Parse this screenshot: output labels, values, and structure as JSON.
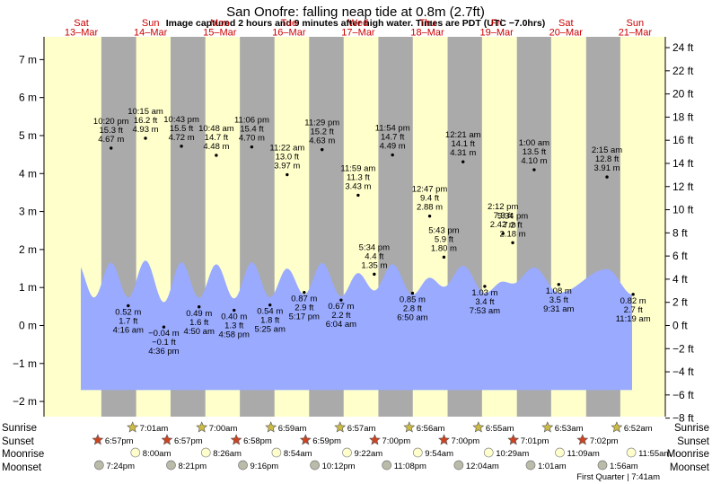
{
  "title": "San Onofre: falling  neap tide at 0.8m (2.7ft)",
  "subtitle": "Image captured 2 hours and 9 minutes after high water. Times are PDT (UTC −7.0hrs)",
  "colors": {
    "day": "#ffffcc",
    "night": "#aaaaaa",
    "water": "#99aaff",
    "sunrise_star": "#ccbb44",
    "sunset_star": "#cc4422",
    "moonrise": "#ffffcc",
    "moonset": "#bbbbaa",
    "day_label": "#cc0000"
  },
  "chart_data": {
    "type": "area",
    "title": "San Onofre: falling  neap tide at 0.8m (2.7ft)",
    "xlabel": "",
    "ylabel_left": "m",
    "ylabel_right": "ft",
    "ylim_m": [
      -2.4,
      7.6
    ],
    "left_ticks": [
      "−2 m",
      "−1 m",
      "0 m",
      "1 m",
      "2 m",
      "3 m",
      "4 m",
      "5 m",
      "6 m",
      "7 m"
    ],
    "right_ticks": [
      "−8 ft",
      "−6 ft",
      "−4 ft",
      "−2 ft",
      "0 ft",
      "2 ft",
      "4 ft",
      "6 ft",
      "8 ft",
      "10 ft",
      "12 ft",
      "14 ft",
      "16 ft",
      "18 ft",
      "20 ft",
      "22 ft",
      "24 ft"
    ],
    "days": [
      {
        "dow": "Sat",
        "date": "13–Mar"
      },
      {
        "dow": "Sun",
        "date": "14–Mar"
      },
      {
        "dow": "Mon",
        "date": "15–Mar"
      },
      {
        "dow": "Tue",
        "date": "16–Mar"
      },
      {
        "dow": "Wed",
        "date": "17–Mar"
      },
      {
        "dow": "Thu",
        "date": "18–Mar"
      },
      {
        "dow": "Fri",
        "date": "19–Mar"
      },
      {
        "dow": "Sat",
        "date": "20–Mar"
      },
      {
        "dow": "Sun",
        "date": "21–Mar"
      }
    ],
    "tides": [
      {
        "day": 0,
        "hour": 22.33,
        "time": "10:20 pm",
        "ft": "15.3 ft",
        "m": 4.67,
        "label": "4.67 m"
      },
      {
        "day": 1,
        "hour": 4.27,
        "time": "4:16 am",
        "ft": "1.7 ft",
        "m": 0.52,
        "label": "0.52 m"
      },
      {
        "day": 1,
        "hour": 10.25,
        "time": "10:15 am",
        "ft": "16.2 ft",
        "m": 4.93,
        "label": "4.93 m"
      },
      {
        "day": 1,
        "hour": 16.6,
        "time": "4:36 pm",
        "ft": "−0.1 ft",
        "m": -0.04,
        "label": "−0.04 m"
      },
      {
        "day": 1,
        "hour": 22.72,
        "time": "10:43 pm",
        "ft": "15.5 ft",
        "m": 4.72,
        "label": "4.72 m"
      },
      {
        "day": 2,
        "hour": 4.83,
        "time": "4:50 am",
        "ft": "1.6 ft",
        "m": 0.49,
        "label": "0.49 m"
      },
      {
        "day": 2,
        "hour": 10.8,
        "time": "10:48 am",
        "ft": "14.7 ft",
        "m": 4.48,
        "label": "4.48 m"
      },
      {
        "day": 2,
        "hour": 16.97,
        "time": "4:58 pm",
        "ft": "1.3 ft",
        "m": 0.4,
        "label": "0.40 m"
      },
      {
        "day": 2,
        "hour": 23.1,
        "time": "11:06 pm",
        "ft": "15.4 ft",
        "m": 4.7,
        "label": "4.70 m"
      },
      {
        "day": 3,
        "hour": 5.42,
        "time": "5:25 am",
        "ft": "1.8 ft",
        "m": 0.54,
        "label": "0.54 m"
      },
      {
        "day": 3,
        "hour": 11.37,
        "time": "11:22 am",
        "ft": "13.0 ft",
        "m": 3.97,
        "label": "3.97 m"
      },
      {
        "day": 3,
        "hour": 17.28,
        "time": "5:17 pm",
        "ft": "2.9 ft",
        "m": 0.87,
        "label": "0.87 m"
      },
      {
        "day": 3,
        "hour": 23.48,
        "time": "11:29 pm",
        "ft": "15.2 ft",
        "m": 4.63,
        "label": "4.63 m"
      },
      {
        "day": 4,
        "hour": 6.07,
        "time": "6:04 am",
        "ft": "2.2 ft",
        "m": 0.67,
        "label": "0.67 m"
      },
      {
        "day": 4,
        "hour": 11.98,
        "time": "11:59 am",
        "ft": "11.3 ft",
        "m": 3.43,
        "label": "3.43 m"
      },
      {
        "day": 4,
        "hour": 17.57,
        "time": "5:34 pm",
        "ft": "4.4 ft",
        "m": 1.35,
        "label": "1.35 m"
      },
      {
        "day": 4,
        "hour": 23.9,
        "time": "11:54 pm",
        "ft": "14.7 ft",
        "m": 4.49,
        "label": "4.49 m"
      },
      {
        "day": 5,
        "hour": 6.83,
        "time": "6:50 am",
        "ft": "2.8 ft",
        "m": 0.85,
        "label": "0.85 m"
      },
      {
        "day": 5,
        "hour": 12.78,
        "time": "12:47 pm",
        "ft": "9.4 ft",
        "m": 2.88,
        "label": "2.88 m"
      },
      {
        "day": 5,
        "hour": 17.72,
        "time": "5:43 pm",
        "ft": "5.9 ft",
        "m": 1.8,
        "label": "1.80 m"
      },
      {
        "day": 6,
        "hour": 0.35,
        "time": "12:21 am",
        "ft": "14.1 ft",
        "m": 4.31,
        "label": "4.31 m"
      },
      {
        "day": 6,
        "hour": 7.88,
        "time": "7:53 am",
        "ft": "3.4 ft",
        "m": 1.03,
        "label": "1.03 m"
      },
      {
        "day": 6,
        "hour": 14.2,
        "time": "2:12 pm",
        "ft": "7.9 ft",
        "m": 2.42,
        "label": "2.42 m"
      },
      {
        "day": 6,
        "hour": 17.57,
        "time": "5:34 pm",
        "ft": "7.2 ft",
        "m": 2.18,
        "label": "2.18 m"
      },
      {
        "day": 7,
        "hour": 1.0,
        "time": "1:00 am",
        "ft": "13.5 ft",
        "m": 4.1,
        "label": "4.10 m"
      },
      {
        "day": 7,
        "hour": 9.52,
        "time": "9:31 am",
        "ft": "3.5 ft",
        "m": 1.08,
        "label": "1.08 m"
      },
      {
        "day": 8,
        "hour": 2.25,
        "time": "2:15 am",
        "ft": "12.8 ft",
        "m": 3.91,
        "label": "3.91 m"
      },
      {
        "day": 8,
        "hour": 11.32,
        "time": "11:19 am",
        "ft": "2.7 ft",
        "m": 0.82,
        "label": "0.82 m"
      }
    ],
    "sunrise": [
      {
        "day": 1,
        "hour": 7.02,
        "time": "7:01am"
      },
      {
        "day": 2,
        "hour": 7.0,
        "time": "7:00am"
      },
      {
        "day": 3,
        "hour": 6.98,
        "time": "6:59am"
      },
      {
        "day": 4,
        "hour": 6.95,
        "time": "6:57am"
      },
      {
        "day": 5,
        "hour": 6.93,
        "time": "6:56am"
      },
      {
        "day": 6,
        "hour": 6.92,
        "time": "6:55am"
      },
      {
        "day": 7,
        "hour": 6.88,
        "time": "6:53am"
      },
      {
        "day": 8,
        "hour": 6.87,
        "time": "6:52am"
      }
    ],
    "sunset": [
      {
        "day": 0,
        "hour": 18.95,
        "time": "6:57pm"
      },
      {
        "day": 1,
        "hour": 18.95,
        "time": "6:57pm"
      },
      {
        "day": 2,
        "hour": 18.97,
        "time": "6:58pm"
      },
      {
        "day": 3,
        "hour": 18.98,
        "time": "6:59pm"
      },
      {
        "day": 4,
        "hour": 19.0,
        "time": "7:00pm"
      },
      {
        "day": 5,
        "hour": 19.0,
        "time": "7:00pm"
      },
      {
        "day": 6,
        "hour": 19.02,
        "time": "7:01pm"
      },
      {
        "day": 7,
        "hour": 19.03,
        "time": "7:02pm"
      }
    ],
    "moonrise": [
      {
        "day": 1,
        "hour": 8.0,
        "time": "8:00am"
      },
      {
        "day": 2,
        "hour": 8.43,
        "time": "8:26am"
      },
      {
        "day": 3,
        "hour": 8.9,
        "time": "8:54am"
      },
      {
        "day": 4,
        "hour": 9.37,
        "time": "9:22am"
      },
      {
        "day": 5,
        "hour": 9.9,
        "time": "9:54am"
      },
      {
        "day": 6,
        "hour": 10.48,
        "time": "10:29am"
      },
      {
        "day": 7,
        "hour": 11.15,
        "time": "11:09am"
      },
      {
        "day": 8,
        "hour": 11.92,
        "time": "11:55am"
      }
    ],
    "moonset": [
      {
        "day": 0,
        "hour": 19.4,
        "time": "7:24pm"
      },
      {
        "day": 1,
        "hour": 20.35,
        "time": "8:21pm"
      },
      {
        "day": 2,
        "hour": 21.27,
        "time": "9:16pm"
      },
      {
        "day": 3,
        "hour": 22.2,
        "time": "10:12pm"
      },
      {
        "day": 4,
        "hour": 23.13,
        "time": "11:08pm"
      },
      {
        "day": 6,
        "hour": 0.07,
        "time": "12:04am"
      },
      {
        "day": 7,
        "hour": 1.02,
        "time": "1:01am"
      },
      {
        "day": 8,
        "hour": 1.93,
        "time": "1:56am"
      }
    ],
    "moon_phase": "First Quarter | 7:41am"
  },
  "row_labels": {
    "sunrise": "Sunrise",
    "sunset": "Sunset",
    "moonrise": "Moonrise",
    "moonset": "Moonset"
  }
}
